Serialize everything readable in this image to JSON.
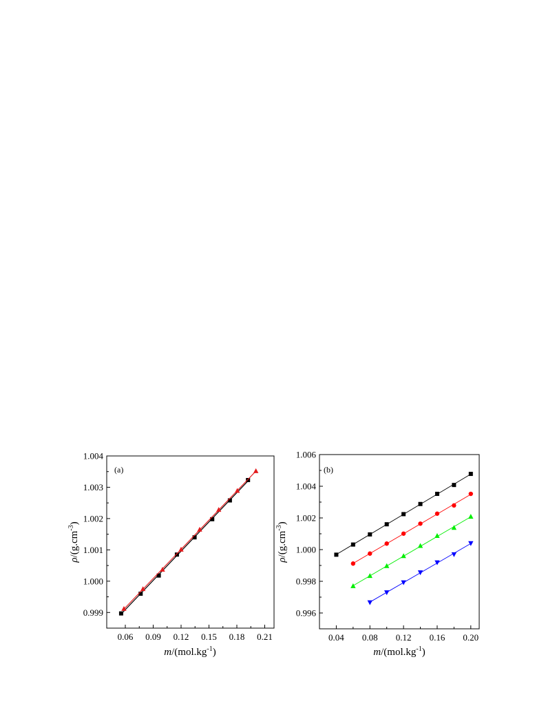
{
  "chart_data": [
    {
      "type": "scatter",
      "panel_label": "(a)",
      "xlabel": "m/(mol.kg-1)",
      "ylabel": "ρ/(g.cm-3)",
      "xlim": [
        0.04,
        0.22
      ],
      "ylim": [
        0.9985,
        1.004
      ],
      "xticks": [
        0.06,
        0.09,
        0.12,
        0.15,
        0.18,
        0.21
      ],
      "xtick_labels": [
        "0.06",
        "0.09",
        "0.12",
        "0.15",
        "0.18",
        "0.21"
      ],
      "yticks": [
        0.999,
        1.0,
        1.001,
        1.002,
        1.003,
        1.004
      ],
      "ytick_labels": [
        "0.999",
        "1.000",
        "1.001",
        "1.002",
        "1.003",
        "1.004"
      ],
      "series": [
        {
          "marker": "square",
          "color": "#000000",
          "x": [
            0.0555,
            0.0765,
            0.096,
            0.1155,
            0.1345,
            0.1535,
            0.1725,
            0.192
          ],
          "y": [
            0.99897,
            0.9996,
            1.00018,
            1.00085,
            1.0014,
            1.00198,
            1.00258,
            1.00323
          ]
        },
        {
          "marker": "triangle-up",
          "color": "#e31a1c",
          "x": [
            0.0585,
            0.079,
            0.1,
            0.12,
            0.14,
            0.1605,
            0.1805,
            0.2005
          ],
          "y": [
            0.99912,
            0.99975,
            1.00037,
            1.00101,
            1.00165,
            1.00228,
            1.00289,
            1.00352
          ]
        }
      ]
    },
    {
      "type": "scatter",
      "panel_label": "(b)",
      "xlabel": "m/(mol.kg-1)",
      "ylabel": "ρ/(g.cm-3)",
      "xlim": [
        0.02,
        0.21
      ],
      "ylim": [
        0.995,
        1.006
      ],
      "xticks": [
        0.04,
        0.08,
        0.12,
        0.16,
        0.2
      ],
      "xtick_labels": [
        "0.04",
        "0.08",
        "0.12",
        "0.16",
        "0.20"
      ],
      "yticks": [
        0.996,
        0.998,
        1.0,
        1.002,
        1.004,
        1.006
      ],
      "ytick_labels": [
        "0.996",
        "0.998",
        "1.000",
        "1.002",
        "1.004",
        "1.006"
      ],
      "series": [
        {
          "marker": "square",
          "color": "#000000",
          "x": [
            0.04,
            0.06,
            0.08,
            0.1,
            0.12,
            0.14,
            0.16,
            0.18,
            0.2
          ],
          "y": [
            0.99968,
            1.00032,
            1.00096,
            1.0016,
            1.00224,
            1.00288,
            1.00352,
            1.00408,
            1.00478
          ]
        },
        {
          "marker": "circle",
          "color": "#ff0000",
          "x": [
            0.06,
            0.08,
            0.1,
            0.12,
            0.14,
            0.16,
            0.18,
            0.2
          ],
          "y": [
            0.99912,
            0.99975,
            1.00038,
            1.00101,
            1.00164,
            1.00227,
            1.00279,
            1.00352
          ]
        },
        {
          "marker": "triangle-up",
          "color": "#00ee00",
          "x": [
            0.06,
            0.08,
            0.1,
            0.12,
            0.14,
            0.16,
            0.18,
            0.2
          ],
          "y": [
            0.9977,
            0.99834,
            0.99897,
            0.9996,
            1.00024,
            1.00087,
            1.00138,
            1.00208
          ]
        },
        {
          "marker": "triangle-down",
          "color": "#0000ff",
          "x": [
            0.08,
            0.1,
            0.12,
            0.14,
            0.16,
            0.18,
            0.2
          ],
          "y": [
            0.99667,
            0.9973,
            0.99793,
            0.99856,
            0.99919,
            0.9997,
            1.0004
          ]
        }
      ]
    }
  ]
}
